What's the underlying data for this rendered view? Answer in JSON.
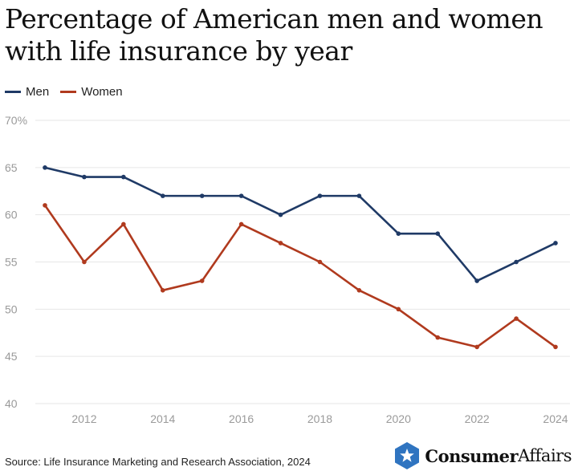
{
  "chart_data": {
    "type": "line",
    "title": "Percentage of American men and women with life insurance by year",
    "x": [
      2011,
      2012,
      2013,
      2014,
      2015,
      2016,
      2017,
      2018,
      2019,
      2020,
      2021,
      2022,
      2023,
      2024
    ],
    "x_tick_labels": [
      "2012",
      "2014",
      "2016",
      "2018",
      "2020",
      "2022",
      "2024"
    ],
    "y_tick_labels": [
      "70%",
      "65",
      "60",
      "55",
      "50",
      "45",
      "40"
    ],
    "ylim": [
      40,
      70
    ],
    "xlim": [
      2011,
      2024
    ],
    "grid": true,
    "legend_position": "top-left",
    "series": [
      {
        "name": "Men",
        "color": "#1f3a66",
        "values": [
          65,
          64,
          64,
          62,
          62,
          62,
          60,
          62,
          62,
          58,
          58,
          53,
          55,
          57
        ]
      },
      {
        "name": "Women",
        "color": "#b03a1e",
        "values": [
          61,
          55,
          59,
          52,
          53,
          59,
          57,
          55,
          52,
          50,
          47,
          46,
          49,
          46
        ]
      }
    ]
  },
  "footer": {
    "source": "Source: Life Insurance Marketing and Research Association, 2024"
  },
  "brand": {
    "strong": "Consumer",
    "light": "Affairs",
    "icon": "star-badge-icon",
    "color": "#2f74c0"
  }
}
